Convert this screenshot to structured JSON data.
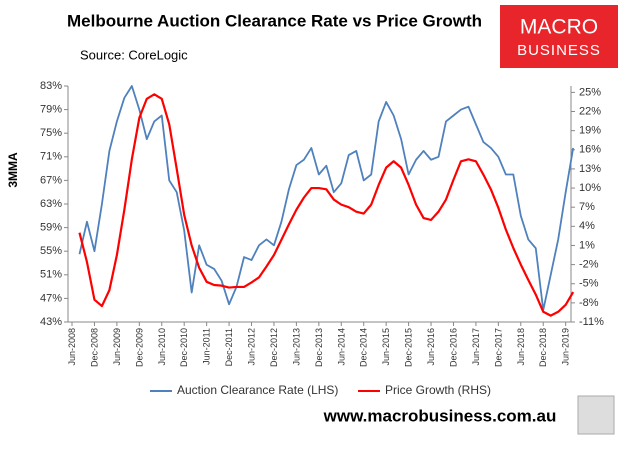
{
  "chart_data": {
    "type": "line",
    "title": "Melbourne Auction Clearance Rate vs Price Growth",
    "subtitle": "Source: CoreLogic",
    "y_label": "3MMA",
    "logo": {
      "line1": "MACRO",
      "line2": "BUSINESS"
    },
    "footer": "www.macrobusiness.com.au",
    "categories": [
      "Jun-2008",
      null,
      null,
      "Dec-2008",
      null,
      null,
      "Jun-2009",
      null,
      null,
      "Dec-2009",
      null,
      null,
      "Jun-2010",
      null,
      null,
      "Dec-2010",
      null,
      null,
      "Jun-2011",
      null,
      null,
      "Dec-2011",
      null,
      null,
      "Jun-2012",
      null,
      null,
      "Dec-2012",
      null,
      null,
      "Jun-2013",
      null,
      null,
      "Dec-2013",
      null,
      null,
      "Jun-2014",
      null,
      null,
      "Dec-2014",
      null,
      null,
      "Jun-2015",
      null,
      null,
      "Dec-2015",
      null,
      null,
      "Jun-2016",
      null,
      null,
      "Dec-2016",
      null,
      null,
      "Jun-2017",
      null,
      null,
      "Dec-2017",
      null,
      null,
      "Jun-2018",
      null,
      null,
      "Dec-2018",
      null,
      null,
      "Jun-2019",
      null
    ],
    "series": [
      {
        "name": "Auction Clearance Rate (LHS)",
        "color": "#4f81bd",
        "axis": "y",
        "values": [
          null,
          54.5,
          60,
          55,
          63,
          72,
          77,
          81,
          83,
          79,
          74,
          77,
          78,
          67,
          65,
          58.5,
          48,
          56,
          52.7,
          52,
          50,
          46,
          49,
          54,
          53.5,
          56,
          57,
          56,
          60,
          65.5,
          69.6,
          70.5,
          72.5,
          68,
          69.5,
          65,
          66.5,
          71.3,
          72,
          67,
          68,
          77,
          80.3,
          78,
          74,
          68,
          70.5,
          72,
          70.5,
          71,
          77,
          78,
          79,
          79.5,
          76.5,
          73.5,
          72.5,
          71,
          68,
          68,
          61,
          57,
          55.5,
          45,
          51,
          57,
          65,
          72.5
        ]
      },
      {
        "name": "Price Growth (RHS)",
        "color": "#ff0000",
        "axis": "y2",
        "values": [
          null,
          3,
          -1.6,
          -7.5,
          -8.5,
          -6,
          -0.5,
          6.6,
          14.5,
          21,
          24,
          24.7,
          24,
          20,
          13,
          5.8,
          1,
          -2.5,
          -4.7,
          -5.2,
          -5.3,
          -5.6,
          -5.5,
          -5.5,
          -4.8,
          -4,
          -2.3,
          -0.5,
          1.9,
          4.3,
          6.6,
          8.5,
          10,
          10,
          9.8,
          8.2,
          7.4,
          7,
          6.3,
          6,
          7.4,
          10.5,
          13.2,
          14.2,
          13.2,
          10.5,
          7.4,
          5.3,
          5,
          6.3,
          8.2,
          11.3,
          14.2,
          14.5,
          14.2,
          12.1,
          9.8,
          6.9,
          3.5,
          0.6,
          -2,
          -4.4,
          -6.7,
          -9.4,
          -10,
          -9.4,
          -8.3,
          -6.3
        ]
      }
    ],
    "ylim": [
      43,
      83
    ],
    "yticks": [
      {
        "value": 43,
        "label": "43%"
      },
      {
        "value": 47,
        "label": "47%"
      },
      {
        "value": 51,
        "label": "51%"
      },
      {
        "value": 55,
        "label": "55%"
      },
      {
        "value": 59,
        "label": "59%"
      },
      {
        "value": 63,
        "label": "63%"
      },
      {
        "value": 67,
        "label": "67%"
      },
      {
        "value": 71,
        "label": "71%"
      },
      {
        "value": 75,
        "label": "75%"
      },
      {
        "value": 79,
        "label": "79%"
      },
      {
        "value": 83,
        "label": "83%"
      }
    ],
    "y2lim": [
      -11,
      26
    ],
    "y2ticks": [
      {
        "value": -11,
        "label": "-11%"
      },
      {
        "value": -8,
        "label": "-8%"
      },
      {
        "value": -5,
        "label": "-5%"
      },
      {
        "value": -2,
        "label": "-2%"
      },
      {
        "value": 1,
        "label": "1%"
      },
      {
        "value": 4,
        "label": "4%"
      },
      {
        "value": 7,
        "label": "7%"
      },
      {
        "value": 10,
        "label": "10%"
      },
      {
        "value": 13,
        "label": "13%"
      },
      {
        "value": 16,
        "label": "16%"
      },
      {
        "value": 19,
        "label": "19%"
      },
      {
        "value": 22,
        "label": "22%"
      },
      {
        "value": 25,
        "label": "25%"
      }
    ],
    "grid": false,
    "legend": "bottom"
  }
}
